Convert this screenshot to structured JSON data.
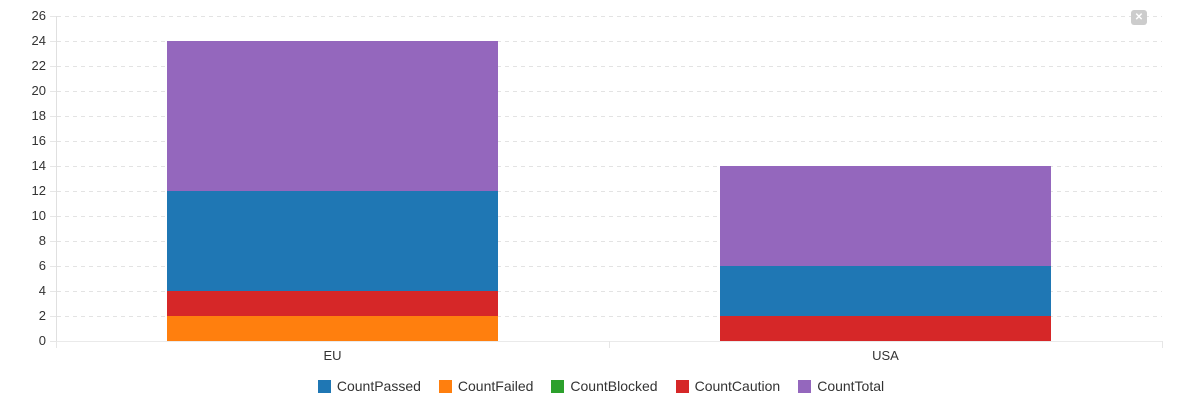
{
  "icons": {
    "close": "✕"
  },
  "colors": {
    "background": "#ffffff",
    "grid": "#e3e3e3",
    "axis": "#e0e0e0",
    "text": "#333333",
    "close_button_bg": "#cccccc",
    "close_button_fg": "#ffffff"
  },
  "chart_data": {
    "type": "bar",
    "stacked": true,
    "title": "",
    "xlabel": "",
    "ylabel": "",
    "categories": [
      "EU",
      "USA"
    ],
    "series": [
      {
        "name": "CountPassed",
        "color": "#1f77b4",
        "values": [
          8,
          4
        ]
      },
      {
        "name": "CountFailed",
        "color": "#ff7f0e",
        "values": [
          2,
          0
        ]
      },
      {
        "name": "CountBlocked",
        "color": "#2ca02c",
        "values": [
          0,
          0
        ]
      },
      {
        "name": "CountCaution",
        "color": "#d62728",
        "values": [
          2,
          2
        ]
      },
      {
        "name": "CountTotal",
        "color": "#9467bd",
        "values": [
          12,
          8
        ]
      }
    ],
    "stack_order_bottom_to_top": [
      "CountFailed",
      "CountBlocked",
      "CountCaution",
      "CountPassed",
      "CountTotal"
    ],
    "stack_totals": [
      24,
      14
    ],
    "ylim": [
      0,
      26
    ],
    "ytick_step": 2,
    "yticks": [
      0,
      2,
      4,
      6,
      8,
      10,
      12,
      14,
      16,
      18,
      20,
      22,
      24,
      26
    ],
    "grid": "horizontal-dashed",
    "legend_position": "bottom"
  }
}
